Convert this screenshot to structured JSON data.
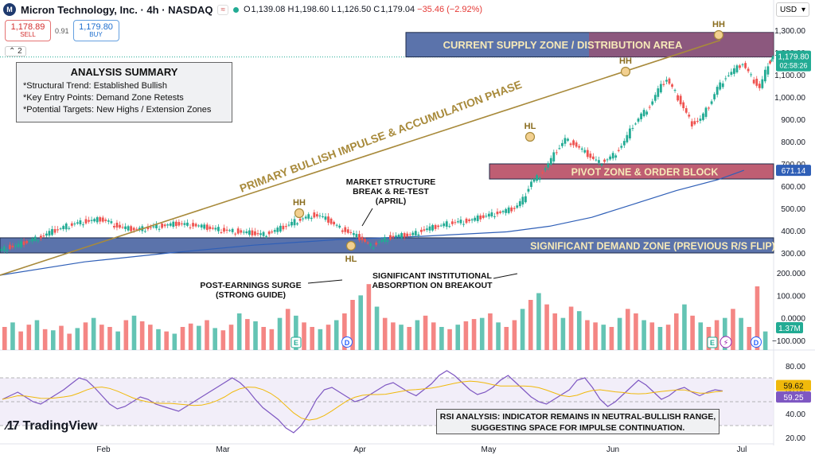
{
  "header": {
    "symbol_logo": "M",
    "title": "Micron Technology, Inc. · 4h · NASDAQ",
    "badge": "≈",
    "ohlc": {
      "o": "1,139.08",
      "h": "1,198.60",
      "l": "1,126.50",
      "c": "1,179.04",
      "change": "−35.46 (−2.92%)"
    },
    "currency": "USD"
  },
  "trade": {
    "sell_price": "1,178.89",
    "sell_label": "SELL",
    "spread": "0.91",
    "buy_price": "1,179.80",
    "buy_label": "BUY",
    "collapse_count": "2"
  },
  "summary": {
    "title": "ANALYSIS SUMMARY",
    "items": [
      "*Structural Trend: Established Bullish",
      "*Key Entry Points: Demand Zone Retests",
      "*Potential Targets: New Highs / Extension Zones"
    ]
  },
  "rsi_note": {
    "line1": "RSI ANALYSIS: INDICATOR REMAINS IN NEUTRAL-BULLISH RANGE,",
    "line2": "SUGGESTING SPACE FOR IMPULSE CONTINUATION."
  },
  "brand": "TradingView",
  "colors": {
    "up": "#22ab94",
    "down": "#ef5350",
    "zone_blue": "#3e5b9c",
    "zone_red": "#b4425a",
    "trend_gold": "#a88a3b",
    "ema_blue": "#2f5fb7",
    "rsi_purple": "#7e57c2",
    "rsi_ma": "#f0b90b"
  },
  "chart_data": {
    "type": "candlestick",
    "price_axis": {
      "ticks": [
        1300,
        1200,
        1100,
        1000,
        900,
        800,
        700,
        600,
        500,
        400,
        300
      ],
      "tick_labels": [
        "1,300.00",
        "1,200.00",
        "1,100.00",
        "1,000.00",
        "900.00",
        "800.00",
        "700.00",
        "600.00",
        "500.00",
        "400.00",
        "300.00"
      ]
    },
    "volume_axis": {
      "ticks": [
        200,
        100,
        0,
        -100
      ],
      "tick_labels": [
        "200.000",
        "100.000",
        "0.0000",
        "−100.000"
      ]
    },
    "rsi_axis": {
      "ticks": [
        80,
        60,
        40,
        20
      ],
      "tick_labels": [
        "80.00",
        "60.00",
        "40.00",
        "20.00"
      ],
      "band_upper": 70,
      "band_lower": 30
    },
    "x_labels": [
      "Feb",
      "Mar",
      "Apr",
      "May",
      "Jun",
      "Jul"
    ],
    "price_tags": [
      {
        "label": "1,179.80",
        "sub": "02:58:26",
        "color": "#22ab94",
        "value": 1179.8
      },
      {
        "label": "671.14",
        "color": "#2f5fb7",
        "value": 671.14
      }
    ],
    "volume_tag": {
      "label": "1.37M",
      "color": "#22ab94"
    },
    "rsi_tags": [
      {
        "label": "59.62",
        "color": "#f0b90b",
        "text_color": "#111",
        "value": 59.62
      },
      {
        "label": "59.25",
        "color": "#7e57c2",
        "text_color": "#fff",
        "value": 59.25
      }
    ],
    "zones": [
      {
        "name": "CURRENT SUPPLY ZONE / DISTRIBUTION AREA",
        "low": 1180,
        "high": 1290,
        "x0": 0.0,
        "x1": 1.0,
        "kind": "supply"
      },
      {
        "name": "PIVOT ZONE & ORDER BLOCK",
        "low": 632,
        "high": 700,
        "x0": 0.0,
        "x1": 1.0,
        "kind": "pivot"
      },
      {
        "name": "SIGNIFICANT DEMAND ZONE (PREVIOUS R/S FLIP)",
        "low": 300,
        "high": 368,
        "x0": 0.0,
        "x1": 1.0,
        "kind": "demand"
      }
    ],
    "trendline_label": "PRIMARY BULLISH IMPULSE & ACCUMULATION PHASE",
    "annotations": [
      {
        "text": "HH",
        "kind": "swing"
      },
      {
        "text": "HL",
        "kind": "swing"
      },
      {
        "text": "HL",
        "kind": "swing"
      },
      {
        "text": "HH",
        "kind": "swing"
      },
      {
        "text": "HH",
        "kind": "swing"
      }
    ],
    "callouts": [
      {
        "lines": [
          "MARKET STRUCTURE",
          "BREAK & RE-TEST",
          "(APRIL)"
        ]
      },
      {
        "lines": [
          "POST-EARNINGS SURGE",
          "(STRONG GUIDE)"
        ]
      },
      {
        "lines": [
          "SIGNIFICANT INSTITUTIONAL",
          "ABSORPTION ON BREAKOUT"
        ]
      }
    ],
    "event_markers": [
      "E",
      "D",
      "E",
      "D"
    ],
    "price_path": [
      [
        0,
        310
      ],
      [
        10,
        325
      ],
      [
        20,
        330
      ],
      [
        30,
        345
      ],
      [
        40,
        360
      ],
      [
        50,
        372
      ],
      [
        60,
        390
      ],
      [
        70,
        405
      ],
      [
        80,
        420
      ],
      [
        90,
        432
      ],
      [
        100,
        440
      ],
      [
        110,
        445
      ],
      [
        120,
        450
      ],
      [
        130,
        440
      ],
      [
        140,
        420
      ],
      [
        150,
        410
      ],
      [
        160,
        405
      ],
      [
        170,
        408
      ],
      [
        180,
        415
      ],
      [
        190,
        420
      ],
      [
        200,
        425
      ],
      [
        210,
        430
      ],
      [
        220,
        428
      ],
      [
        230,
        425
      ],
      [
        240,
        418
      ],
      [
        250,
        410
      ],
      [
        260,
        405
      ],
      [
        270,
        400
      ],
      [
        280,
        398
      ],
      [
        290,
        392
      ],
      [
        300,
        388
      ],
      [
        310,
        382
      ],
      [
        320,
        390
      ],
      [
        330,
        405
      ],
      [
        340,
        420
      ],
      [
        350,
        440
      ],
      [
        360,
        455
      ],
      [
        370,
        470
      ],
      [
        380,
        465
      ],
      [
        390,
        445
      ],
      [
        400,
        420
      ],
      [
        410,
        400
      ],
      [
        420,
        380
      ],
      [
        430,
        360
      ],
      [
        440,
        330
      ],
      [
        450,
        350
      ],
      [
        460,
        368
      ],
      [
        470,
        375
      ],
      [
        480,
        378
      ],
      [
        490,
        385
      ],
      [
        500,
        400
      ],
      [
        510,
        410
      ],
      [
        520,
        420
      ],
      [
        530,
        430
      ],
      [
        540,
        438
      ],
      [
        550,
        442
      ],
      [
        560,
        448
      ],
      [
        570,
        460
      ],
      [
        580,
        470
      ],
      [
        590,
        480
      ],
      [
        600,
        488
      ],
      [
        610,
        500
      ],
      [
        620,
        540
      ],
      [
        630,
        620
      ],
      [
        640,
        650
      ],
      [
        650,
        700
      ],
      [
        660,
        760
      ],
      [
        670,
        810
      ],
      [
        680,
        790
      ],
      [
        690,
        760
      ],
      [
        700,
        730
      ],
      [
        710,
        705
      ],
      [
        720,
        720
      ],
      [
        730,
        750
      ],
      [
        740,
        800
      ],
      [
        750,
        870
      ],
      [
        760,
        920
      ],
      [
        770,
        960
      ],
      [
        780,
        1030
      ],
      [
        790,
        1080
      ],
      [
        800,
        1020
      ],
      [
        810,
        950
      ],
      [
        820,
        880
      ],
      [
        830,
        900
      ],
      [
        840,
        960
      ],
      [
        850,
        1040
      ],
      [
        860,
        1090
      ],
      [
        870,
        1120
      ],
      [
        880,
        1150
      ],
      [
        890,
        1090
      ],
      [
        900,
        1040
      ],
      [
        910,
        1150
      ],
      [
        915,
        1180
      ]
    ],
    "ema_path": [
      [
        0,
        200
      ],
      [
        100,
        260
      ],
      [
        200,
        300
      ],
      [
        300,
        335
      ],
      [
        400,
        360
      ],
      [
        500,
        375
      ],
      [
        600,
        395
      ],
      [
        650,
        420
      ],
      [
        700,
        460
      ],
      [
        750,
        520
      ],
      [
        800,
        580
      ],
      [
        850,
        630
      ],
      [
        880,
        671
      ]
    ],
    "volume_values": [
      60,
      80,
      40,
      70,
      90,
      50,
      45,
      65,
      30,
      55,
      80,
      100,
      70,
      60,
      40,
      90,
      110,
      85,
      70,
      50,
      40,
      30,
      60,
      75,
      65,
      90,
      55,
      45,
      70,
      120,
      95,
      85,
      60,
      50,
      100,
      140,
      110,
      80,
      60,
      50,
      70,
      90,
      120,
      180,
      200,
      250,
      150,
      100,
      80,
      70,
      60,
      90,
      110,
      80,
      60,
      50,
      70,
      85,
      95,
      100,
      120,
      80,
      60,
      90,
      140,
      180,
      210,
      160,
      120,
      100,
      150,
      130,
      90,
      80,
      70,
      60,
      100,
      140,
      120,
      90,
      80,
      60,
      70,
      120,
      160,
      110,
      80,
      60,
      90,
      100,
      140,
      100,
      60,
      240,
      40
    ],
    "rsi_values": [
      52,
      55,
      58,
      54,
      50,
      48,
      52,
      56,
      60,
      65,
      70,
      68,
      62,
      55,
      48,
      44,
      46,
      50,
      54,
      52,
      48,
      46,
      44,
      42,
      46,
      50,
      54,
      58,
      62,
      66,
      70,
      66,
      60,
      52,
      45,
      40,
      35,
      28,
      24,
      30,
      40,
      52,
      60,
      62,
      58,
      54,
      50,
      52,
      56,
      60,
      64,
      66,
      62,
      58,
      55,
      60,
      65,
      72,
      76,
      72,
      66,
      60,
      56,
      58,
      62,
      68,
      72,
      66,
      60,
      54,
      50,
      48,
      52,
      56,
      60,
      68,
      70,
      62,
      52,
      46,
      50,
      56,
      62,
      68,
      64,
      58,
      52,
      55,
      60,
      62,
      58,
      55,
      58,
      60,
      59
    ]
  }
}
